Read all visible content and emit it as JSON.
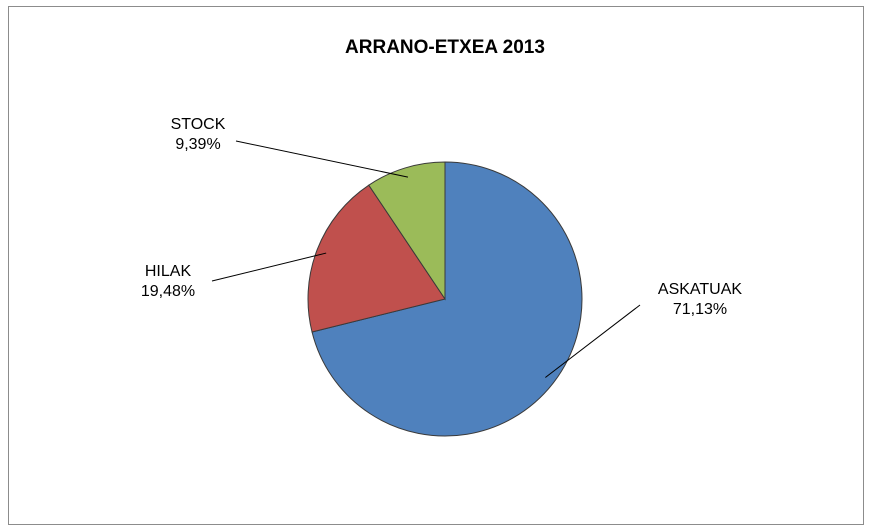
{
  "chart_data": {
    "type": "pie",
    "title": "ARRANO-ETXEA 2013",
    "start_angle_deg": 0,
    "direction": "clockwise",
    "slices": [
      {
        "label": "ASKATUAK",
        "value": 71.13,
        "value_label": "71,13%",
        "color": "#4f81bd"
      },
      {
        "label": "HILAK",
        "value": 19.48,
        "value_label": "19,48%",
        "color": "#c0504d"
      },
      {
        "label": "STOCK",
        "value": 9.39,
        "value_label": "9,39%",
        "color": "#9bbb59"
      }
    ],
    "legend": "none"
  }
}
